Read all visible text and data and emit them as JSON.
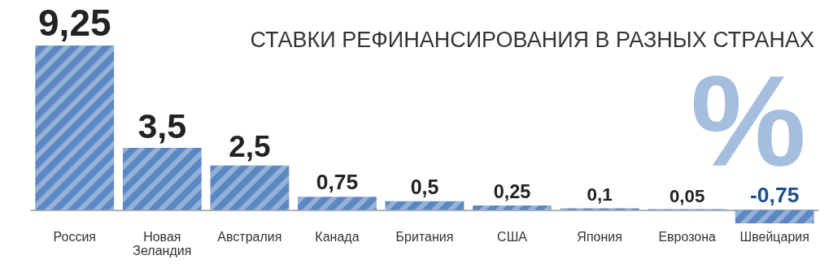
{
  "chart_data": {
    "type": "bar",
    "title": "СТАВКИ РЕФИНАНСИРОВАНИЯ В РАЗНЫХ СТРАНАХ",
    "annotations": [
      "%"
    ],
    "categories": [
      "Россия",
      "Новая Зеландия",
      "Австралия",
      "Канада",
      "Британия",
      "США",
      "Япония",
      "Еврозона",
      "Швейцария"
    ],
    "values": [
      9.25,
      3.5,
      2.5,
      0.75,
      0.5,
      0.25,
      0.1,
      0.05,
      -0.75
    ],
    "value_labels": [
      "9,25",
      "3,5",
      "2,5",
      "0,75",
      "0,5",
      "0,25",
      "0,1",
      "0,05",
      "-0,75"
    ],
    "color": "#5b87c2"
  }
}
